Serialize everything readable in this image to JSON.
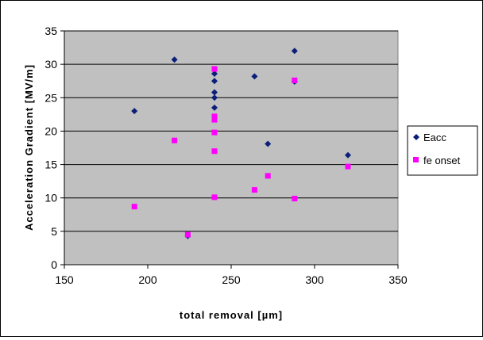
{
  "chart_data": {
    "type": "scatter",
    "title": "",
    "xlabel": "total removal [µm]",
    "ylabel": "Acceleration Gradient [MV/m]",
    "xlim": [
      150,
      350
    ],
    "ylim": [
      0,
      35
    ],
    "xticks": [
      150,
      200,
      250,
      300,
      350
    ],
    "yticks": [
      0,
      5,
      10,
      15,
      20,
      25,
      30,
      35
    ],
    "grid": true,
    "legend_position": "right",
    "series": [
      {
        "name": "Eacc",
        "marker": "diamond",
        "color": "#0b1f78",
        "points": [
          [
            192,
            23.0
          ],
          [
            216,
            30.7
          ],
          [
            224,
            4.3
          ],
          [
            240,
            28.6
          ],
          [
            240,
            27.5
          ],
          [
            240,
            25.8
          ],
          [
            240,
            25.0
          ],
          [
            240,
            23.5
          ],
          [
            264,
            28.2
          ],
          [
            272,
            18.1
          ],
          [
            288,
            32.0
          ],
          [
            288,
            27.4
          ],
          [
            320,
            16.4
          ]
        ]
      },
      {
        "name": "fe onset",
        "marker": "square",
        "color": "#ff00ff",
        "points": [
          [
            192,
            8.7
          ],
          [
            216,
            18.6
          ],
          [
            224,
            4.5
          ],
          [
            240,
            29.3
          ],
          [
            240,
            22.2
          ],
          [
            240,
            21.7
          ],
          [
            240,
            19.8
          ],
          [
            240,
            17.0
          ],
          [
            240,
            10.1
          ],
          [
            264,
            11.2
          ],
          [
            272,
            13.3
          ],
          [
            288,
            27.6
          ],
          [
            288,
            9.9
          ],
          [
            320,
            14.7
          ]
        ]
      }
    ]
  }
}
